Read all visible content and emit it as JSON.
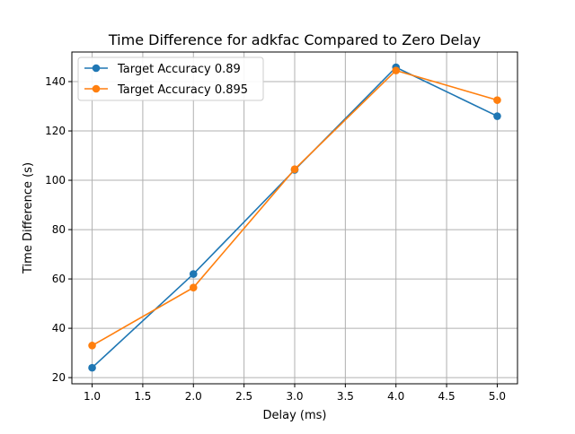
{
  "chart_data": {
    "type": "line",
    "title": "Time Difference for adkfac Compared to Zero Delay",
    "xlabel": "Delay (ms)",
    "ylabel": "Time Difference (s)",
    "x": [
      1.0,
      2.0,
      3.0,
      4.0,
      5.0
    ],
    "xlim": [
      0.8,
      5.2
    ],
    "ylim": [
      17.5,
      152.0
    ],
    "x_ticks": [
      1.0,
      1.5,
      2.0,
      2.5,
      3.0,
      3.5,
      4.0,
      4.5,
      5.0
    ],
    "x_tick_labels": [
      "1.0",
      "1.5",
      "2.0",
      "2.5",
      "3.0",
      "3.5",
      "4.0",
      "4.5",
      "5.0"
    ],
    "y_ticks": [
      20,
      40,
      60,
      80,
      100,
      120,
      140
    ],
    "y_tick_labels": [
      "20",
      "40",
      "60",
      "80",
      "100",
      "120",
      "140"
    ],
    "grid": true,
    "legend_position": "top-left",
    "series": [
      {
        "name": "Target Accuracy 0.89",
        "color": "#1f77b4",
        "marker": "circle",
        "values": [
          24.0,
          62.0,
          104.2,
          145.8,
          126.0
        ]
      },
      {
        "name": "Target Accuracy 0.895",
        "color": "#ff7f0e",
        "marker": "circle",
        "values": [
          33.0,
          56.5,
          104.5,
          144.5,
          132.5
        ]
      }
    ]
  }
}
